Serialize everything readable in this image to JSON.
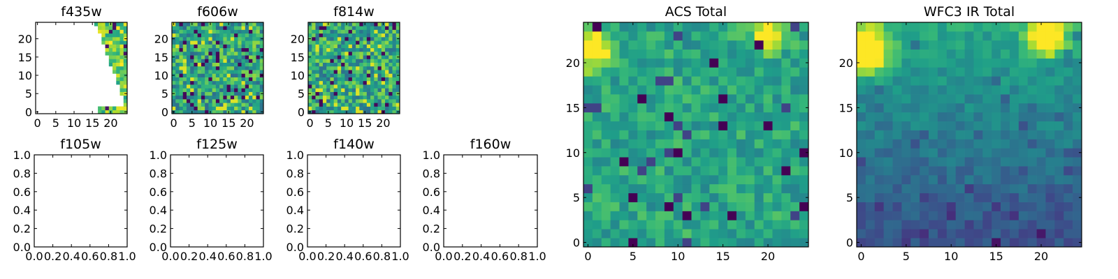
{
  "chart_data": [
    {
      "type": "heatmap",
      "title": "f435w",
      "colormap": "viridis",
      "grid": [
        25,
        25
      ],
      "xlim": [
        -0.5,
        24.5
      ],
      "ylim": [
        -0.5,
        24.5
      ],
      "xticks": [
        "0",
        "5",
        "10",
        "15",
        "20"
      ],
      "yticks": [
        "0",
        "5",
        "10",
        "15",
        "20"
      ],
      "coverage": "partial-right-edge"
    },
    {
      "type": "heatmap",
      "title": "f606w",
      "colormap": "viridis",
      "grid": [
        25,
        25
      ],
      "xlim": [
        -0.5,
        24.5
      ],
      "ylim": [
        -0.5,
        24.5
      ],
      "xticks": [
        "0",
        "5",
        "10",
        "15",
        "20"
      ],
      "yticks": [
        "0",
        "5",
        "10",
        "15",
        "20"
      ],
      "coverage": "full"
    },
    {
      "type": "heatmap",
      "title": "f814w",
      "colormap": "viridis",
      "grid": [
        25,
        25
      ],
      "xlim": [
        -0.5,
        24.5
      ],
      "ylim": [
        -0.5,
        24.5
      ],
      "xticks": [
        "0",
        "5",
        "10",
        "15",
        "20"
      ],
      "yticks": [
        "0",
        "5",
        "10",
        "15",
        "20"
      ],
      "coverage": "full"
    },
    {
      "type": "empty",
      "title": "f105w",
      "xlim": [
        0,
        1
      ],
      "ylim": [
        0,
        1
      ],
      "xticks": [
        "0.0",
        "0.2",
        "0.4",
        "0.6",
        "0.8",
        "1.0"
      ],
      "yticks": [
        "0.0",
        "0.2",
        "0.4",
        "0.6",
        "0.8",
        "1.0"
      ]
    },
    {
      "type": "empty",
      "title": "f125w",
      "xlim": [
        0,
        1
      ],
      "ylim": [
        0,
        1
      ],
      "xticks": [
        "0.0",
        "0.2",
        "0.4",
        "0.6",
        "0.8",
        "1.0"
      ],
      "yticks": [
        "0.0",
        "0.2",
        "0.4",
        "0.6",
        "0.8",
        "1.0"
      ]
    },
    {
      "type": "empty",
      "title": "f140w",
      "xlim": [
        0,
        1
      ],
      "ylim": [
        0,
        1
      ],
      "xticks": [
        "0.0",
        "0.2",
        "0.4",
        "0.6",
        "0.8",
        "1.0"
      ],
      "yticks": [
        "0.0",
        "0.2",
        "0.4",
        "0.6",
        "0.8",
        "1.0"
      ]
    },
    {
      "type": "empty",
      "title": "f160w",
      "xlim": [
        0,
        1
      ],
      "ylim": [
        0,
        1
      ],
      "xticks": [
        "0.0",
        "0.2",
        "0.4",
        "0.6",
        "0.8",
        "1.0"
      ],
      "yticks": [
        "0.0",
        "0.2",
        "0.4",
        "0.6",
        "0.8",
        "1.0"
      ]
    },
    {
      "type": "heatmap",
      "title": "ACS Total",
      "colormap": "viridis",
      "grid": [
        25,
        25
      ],
      "xlim": [
        -0.5,
        24.5
      ],
      "ylim": [
        -0.5,
        24.5
      ],
      "xticks": [
        "0",
        "5",
        "10",
        "15",
        "20"
      ],
      "yticks": [
        "0",
        "5",
        "10",
        "15",
        "20"
      ],
      "coverage": "full"
    },
    {
      "type": "heatmap",
      "title": "WFC3 IR Total",
      "colormap": "viridis",
      "grid": [
        25,
        25
      ],
      "xlim": [
        -0.5,
        24.5
      ],
      "ylim": [
        -0.5,
        24.5
      ],
      "xticks": [
        "0",
        "5",
        "10",
        "15",
        "20"
      ],
      "yticks": [
        "0",
        "5",
        "10",
        "15",
        "20"
      ],
      "coverage": "full"
    }
  ]
}
